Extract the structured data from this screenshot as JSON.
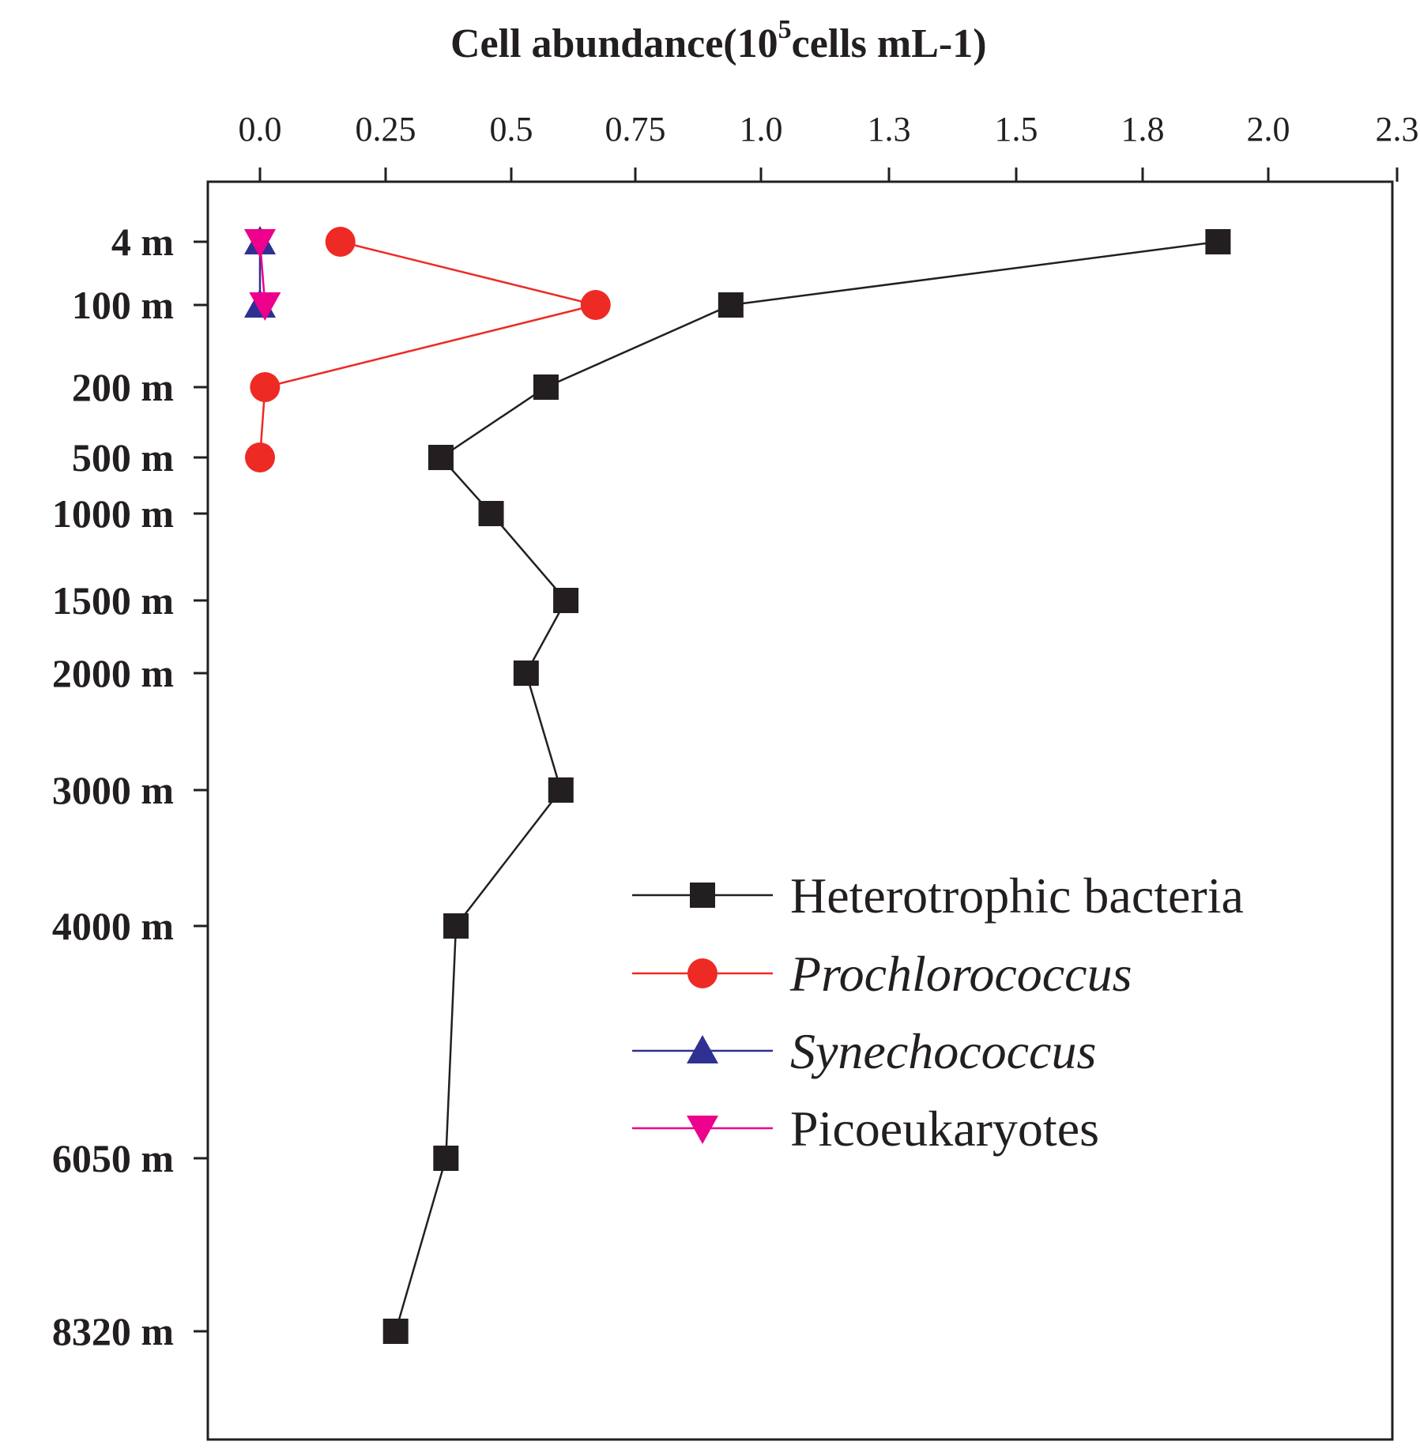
{
  "chart_data": {
    "type": "line",
    "title": "Cell abundance(10",
    "title_sup": "5",
    "title_rest": "cells mL-1)",
    "x_ticks": [
      "0.0",
      "0.25",
      "0.5",
      "0.75",
      "1.0",
      "1.3",
      "1.5",
      "1.8",
      "2.0",
      "2.3"
    ],
    "xlim": [
      0.0,
      2.3
    ],
    "depths": [
      "4 m",
      "100 m",
      "200 m",
      "500 m",
      "1000 m",
      "1500 m",
      "2000 m",
      "3000 m",
      "4000 m",
      "6050 m",
      "8320 m"
    ],
    "series": [
      {
        "name": "Heterotrophic bacteria",
        "italic": false,
        "color": "#231f20",
        "marker": "square",
        "values": [
          1.92,
          0.94,
          0.57,
          0.36,
          0.46,
          0.61,
          0.53,
          0.6,
          0.39,
          0.37,
          0.27
        ]
      },
      {
        "name": "Prochlorococcus",
        "italic": true,
        "color": "#ee2a24",
        "marker": "circle",
        "values": [
          0.16,
          0.67,
          0.01,
          0.0,
          null,
          null,
          null,
          null,
          null,
          null,
          null
        ]
      },
      {
        "name": "Synechococcus",
        "italic": true,
        "color": "#2e3192",
        "marker": "triangle-up",
        "values": [
          0.0,
          0.0,
          null,
          null,
          null,
          null,
          null,
          null,
          null,
          null,
          null
        ]
      },
      {
        "name": "Picoeukaryotes",
        "italic": false,
        "color": "#ec008c",
        "marker": "triangle-down",
        "values": [
          0.0,
          0.01,
          null,
          null,
          null,
          null,
          null,
          null,
          null,
          null,
          null
        ]
      }
    ],
    "legend_position": "lower-right",
    "grid": false
  }
}
